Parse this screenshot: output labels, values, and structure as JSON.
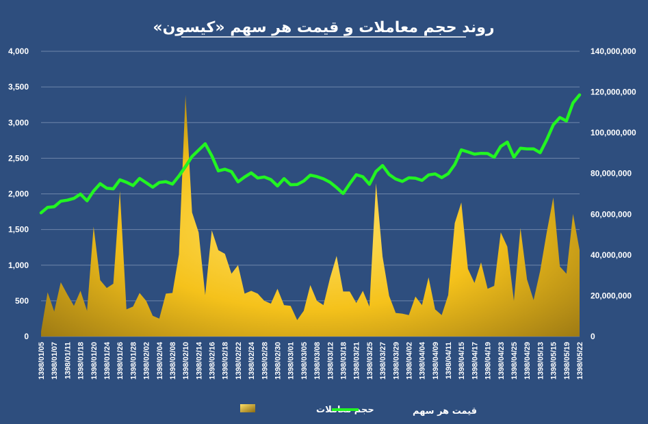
{
  "chart_data": {
    "type": "area",
    "title": "روند حجم معاملات و قیمت هر سهم «کیسون»",
    "colors": {
      "background": "#2E4E7E",
      "area_light": "#FFE066",
      "area_dark": "#8A6A12",
      "line": "#22F522",
      "grid": "#6F86AA",
      "text": "#FFFFFF"
    },
    "ylim_left": [
      0,
      4000
    ],
    "ylim_right": [
      0,
      140000000
    ],
    "yticks_left": [
      "0",
      "500",
      "1,000",
      "1,500",
      "2,000",
      "2,500",
      "3,000",
      "3,500",
      "4,000"
    ],
    "yticks_right": [
      "0",
      "20,000,000",
      "40,000,000",
      "60,000,000",
      "80,000,000",
      "100,000,000",
      "120,000,000",
      "140,000,000"
    ],
    "grid": true,
    "legend_position": "bottom",
    "categories": [
      "1398/01/05",
      "1398/01/06",
      "1398/01/07",
      "1398/01/10",
      "1398/01/11",
      "1398/01/17",
      "1398/01/18",
      "1398/01/19",
      "1398/01/20",
      "1398/01/21",
      "1398/01/24",
      "1398/01/25",
      "1398/01/26",
      "1398/01/27",
      "1398/01/28",
      "1398/01/31",
      "1398/02/02",
      "1398/02/03",
      "1398/02/04",
      "1398/02/07",
      "1398/02/08",
      "1398/02/09",
      "1398/02/10",
      "1398/02/11",
      "1398/02/14",
      "1398/02/15",
      "1398/02/16",
      "1398/02/17",
      "1398/02/18",
      "1398/02/21",
      "1398/02/22",
      "1398/02/23",
      "1398/02/24",
      "1398/02/25",
      "1398/02/28",
      "1398/02/29",
      "1398/02/30",
      "1398/02/31",
      "1398/03/01",
      "1398/03/04",
      "1398/03/05",
      "1398/03/06",
      "1398/03/08",
      "1398/03/11",
      "1398/03/12",
      "1398/03/13",
      "1398/03/18",
      "1398/03/19",
      "1398/03/21",
      "1398/03/22",
      "1398/03/25",
      "1398/03/26",
      "1398/03/27",
      "1398/03/28",
      "1398/03/29",
      "1398/04/01",
      "1398/04/02",
      "1398/04/03",
      "1398/04/04",
      "1398/04/05",
      "1398/04/09",
      "1398/04/10",
      "1398/04/11",
      "1398/04/12",
      "1398/04/15",
      "1398/04/16",
      "1398/04/17",
      "1398/04/18",
      "1398/04/19",
      "1398/04/22",
      "1398/04/23",
      "1398/04/24",
      "1398/04/25",
      "1398/04/26",
      "1398/04/29",
      "1398/04/30",
      "1398/05/13",
      "1398/05/14",
      "1398/05/15",
      "1398/05/16",
      "1398/05/19",
      "1398/05/20",
      "1398/05/22"
    ],
    "xtick_labels": [
      "1398/01/05",
      "1398/01/07",
      "1398/01/11",
      "1398/01/18",
      "1398/01/20",
      "1398/01/24",
      "1398/01/26",
      "1398/01/28",
      "1398/02/02",
      "1398/02/04",
      "1398/02/08",
      "1398/02/10",
      "1398/02/14",
      "1398/02/16",
      "1398/02/18",
      "1398/02/22",
      "1398/02/24",
      "1398/02/28",
      "1398/02/30",
      "1398/03/01",
      "1398/03/05",
      "1398/03/08",
      "1398/03/12",
      "1398/03/18",
      "1398/03/21",
      "1398/03/25",
      "1398/03/27",
      "1398/03/29",
      "1398/04/02",
      "1398/04/04",
      "1398/04/09",
      "1398/04/11",
      "1398/04/15",
      "1398/04/17",
      "1398/04/19",
      "1398/04/23",
      "1398/04/25",
      "1398/04/29",
      "1398/05/13",
      "1398/05/15",
      "1398/05/19",
      "1398/05/22"
    ],
    "series": [
      {
        "name": "حجم معاملات",
        "type": "area",
        "axis": "left",
        "values": [
          70,
          620,
          350,
          760,
          590,
          430,
          640,
          360,
          1540,
          790,
          680,
          740,
          2040,
          380,
          420,
          610,
          500,
          290,
          250,
          600,
          610,
          1150,
          3390,
          1740,
          1460,
          580,
          1490,
          1210,
          1160,
          880,
          1000,
          600,
          640,
          600,
          500,
          460,
          670,
          440,
          430,
          230,
          360,
          720,
          500,
          440,
          820,
          1130,
          630,
          630,
          470,
          640,
          420,
          2150,
          1120,
          570,
          330,
          320,
          300,
          560,
          440,
          830,
          380,
          300,
          580,
          1590,
          1880,
          950,
          750,
          1040,
          670,
          710,
          1460,
          1260,
          500,
          1520,
          800,
          510,
          920,
          1460,
          1950,
          980,
          880,
          1720,
          1210
        ]
      },
      {
        "name": "قیمت هر سهم",
        "type": "line",
        "axis": "right",
        "values": [
          60700000,
          63400000,
          63700000,
          66400000,
          66900000,
          67800000,
          69900000,
          66600000,
          71400000,
          75000000,
          72800000,
          72500000,
          76900000,
          75700000,
          74100000,
          77600000,
          75500000,
          73300000,
          75600000,
          76000000,
          74800000,
          78800000,
          83400000,
          88400000,
          91500000,
          94600000,
          88700000,
          81300000,
          82100000,
          80900000,
          75900000,
          78300000,
          80300000,
          77800000,
          78300000,
          77000000,
          73900000,
          77500000,
          74500000,
          74600000,
          76300000,
          79200000,
          78500000,
          77400000,
          75700000,
          73100000,
          70200000,
          75000000,
          79400000,
          78400000,
          74700000,
          81000000,
          83900000,
          79500000,
          77300000,
          76100000,
          77900000,
          77700000,
          76600000,
          79300000,
          79800000,
          78000000,
          79900000,
          84400000,
          91600000,
          90600000,
          89500000,
          89900000,
          89800000,
          88000000,
          93300000,
          95400000,
          88000000,
          92400000,
          92100000,
          92100000,
          90200000,
          96600000,
          103900000,
          107500000,
          105800000,
          114700000,
          118600000
        ]
      }
    ]
  }
}
